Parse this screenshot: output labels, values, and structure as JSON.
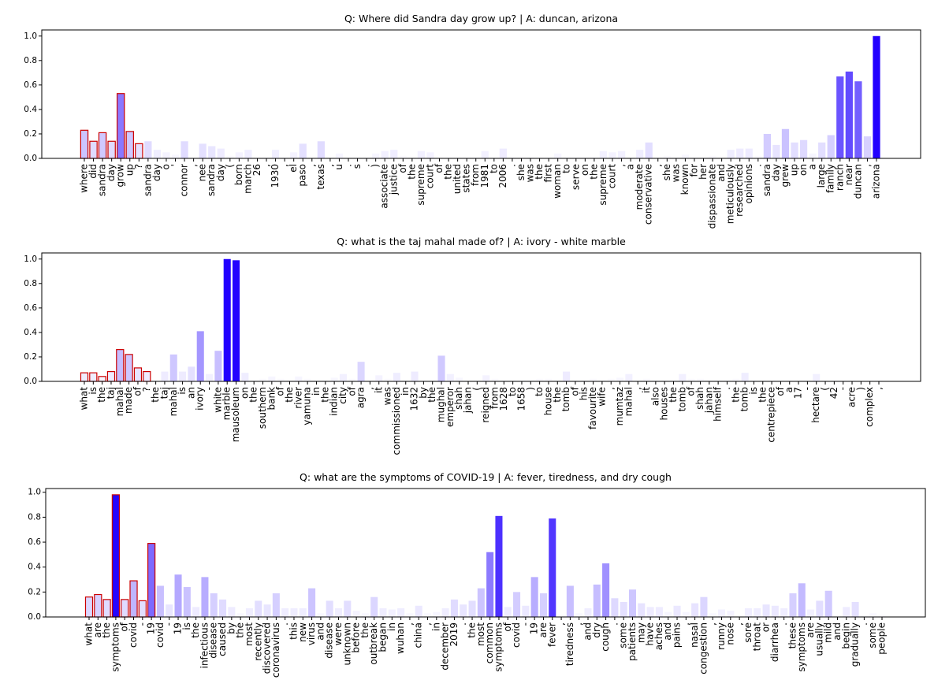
{
  "chart_data": [
    {
      "type": "bar",
      "title": "Q: Where did Sandra day grow up? | A: duncan, arizona",
      "color": "#2200ff",
      "edge_color": "#cc0000",
      "edged_count": 7,
      "categories": [
        "where",
        "did",
        "sandra",
        "day",
        "grow",
        "up",
        "?",
        "sandra",
        "day",
        "o",
        "'",
        "connor",
        ",",
        "nee",
        "sandra",
        "day",
        "(",
        "born",
        "march",
        "26",
        ",",
        "1930",
        ",",
        "el",
        "paso",
        ",",
        "texas",
        ",",
        "u",
        ".",
        "s",
        ".",
        ")",
        "associate",
        "justice",
        "of",
        "the",
        "supreme",
        "court",
        "of",
        "the",
        "united",
        "states",
        "from",
        "1981",
        "to",
        "2006",
        ".",
        "she",
        "was",
        "the",
        "first",
        "woman",
        "to",
        "serve",
        "on",
        "the",
        "supreme",
        "court",
        ",",
        "a",
        "moderate",
        "conservative",
        ",",
        "she",
        "was",
        "known",
        "for",
        "her",
        "dispassionate",
        "and",
        "meticulously",
        "researched",
        "opinions",
        ".",
        "sandra",
        "day",
        "grew",
        "up",
        "on",
        "a",
        "large",
        "family",
        "ranch",
        "near",
        "duncan",
        ",",
        "arizona"
      ],
      "values": [
        0.23,
        0.14,
        0.21,
        0.14,
        0.53,
        0.22,
        0.12,
        0.14,
        0.07,
        0.05,
        0.03,
        0.14,
        0.01,
        0.12,
        0.1,
        0.08,
        0.02,
        0.05,
        0.07,
        0.01,
        0.01,
        0.07,
        0.01,
        0.05,
        0.12,
        0.01,
        0.14,
        0.01,
        0.04,
        0.01,
        0.01,
        0.01,
        0.04,
        0.06,
        0.07,
        0.02,
        0.01,
        0.06,
        0.05,
        0.01,
        0.01,
        0.01,
        0.01,
        0.01,
        0.06,
        0.01,
        0.08,
        0.01,
        0.01,
        0.01,
        0.01,
        0.01,
        0.04,
        0.01,
        0.01,
        0.01,
        0.01,
        0.06,
        0.05,
        0.06,
        0.01,
        0.07,
        0.13,
        0.01,
        0.02,
        0.01,
        0.03,
        0.01,
        0.01,
        0.02,
        0.01,
        0.07,
        0.08,
        0.08,
        0.02,
        0.2,
        0.11,
        0.24,
        0.13,
        0.15,
        0.04,
        0.13,
        0.19,
        0.67,
        0.71,
        0.63,
        0.18,
        1.0
      ],
      "ylim": [
        0,
        1.05
      ],
      "yticks": [
        {
          "value": 0,
          "label": "0.0"
        },
        {
          "value": 0.2,
          "label": "0.2"
        },
        {
          "value": 0.4,
          "label": "0.4"
        },
        {
          "value": 0.6,
          "label": "0.6"
        },
        {
          "value": 0.8,
          "label": "0.8"
        },
        {
          "value": 1.0,
          "label": "1.0"
        }
      ]
    },
    {
      "type": "bar",
      "title": "Q: what is the taj mahal made of? | A: ivory - white marble",
      "color": "#2200ff",
      "edge_color": "#cc0000",
      "edged_count": 8,
      "categories": [
        "what",
        "is",
        "the",
        "taj",
        "mahal",
        "made",
        "of",
        "?",
        "the",
        "taj",
        "mahal",
        "is",
        "an",
        "ivory",
        "-",
        "white",
        "marble",
        "mausoleum",
        "on",
        "the",
        "southern",
        "bank",
        "of",
        "the",
        "river",
        "yamuna",
        "in",
        "the",
        "indian",
        "city",
        "of",
        "agra",
        ",",
        "it",
        "was",
        "commissioned",
        "in",
        "1632",
        "by",
        "the",
        "mughal",
        "emperor",
        "shah",
        "jahan",
        "(",
        "reigned",
        "from",
        "1628",
        "to",
        "1658",
        ")",
        "to",
        "house",
        "the",
        "tomb",
        "of",
        "his",
        "favourite",
        "wife",
        ",",
        "mumtaz",
        "mahal",
        ",",
        "it",
        "also",
        "houses",
        "the",
        "tomb",
        "of",
        "shah",
        "jahan",
        "himself",
        ".",
        "the",
        "tomb",
        "is",
        "the",
        "centrepiece",
        "of",
        "a",
        "17",
        "-",
        "hectare",
        "(",
        "42",
        "-",
        "acre",
        ")",
        "complex",
        ","
      ],
      "values": [
        0.07,
        0.07,
        0.04,
        0.08,
        0.26,
        0.22,
        0.11,
        0.08,
        0.01,
        0.08,
        0.22,
        0.08,
        0.12,
        0.41,
        0.06,
        0.25,
        1.0,
        0.99,
        0.07,
        0.01,
        0.02,
        0.04,
        0.02,
        0.01,
        0.04,
        0.02,
        0.01,
        0.01,
        0.03,
        0.06,
        0.02,
        0.16,
        0.01,
        0.05,
        0.02,
        0.07,
        0.01,
        0.08,
        0.01,
        0.01,
        0.21,
        0.06,
        0.03,
        0.01,
        0.01,
        0.05,
        0.02,
        0.01,
        0.01,
        0.01,
        0.01,
        0.02,
        0.02,
        0.01,
        0.08,
        0.01,
        0.01,
        0.02,
        0.01,
        0.02,
        0.03,
        0.06,
        0.01,
        0.02,
        0.01,
        0.01,
        0.01,
        0.06,
        0.02,
        0.02,
        0.01,
        0.01,
        0.01,
        0.02,
        0.07,
        0.01,
        0.01,
        0.01,
        0.01,
        0.01,
        0.01,
        0.01,
        0.06,
        0.01,
        0.01,
        0.01,
        0.01,
        0.01,
        0.01,
        0.01
      ],
      "ylim": [
        0,
        1.05
      ],
      "yticks": [
        {
          "value": 0,
          "label": "0.0"
        },
        {
          "value": 0.2,
          "label": "0.2"
        },
        {
          "value": 0.4,
          "label": "0.4"
        },
        {
          "value": 0.6,
          "label": "0.6"
        },
        {
          "value": 0.8,
          "label": "0.8"
        },
        {
          "value": 1.0,
          "label": "1.0"
        }
      ]
    },
    {
      "type": "bar",
      "title": "Q: what are the symptoms of COVID-19 | A: fever, tiredness, and dry cough",
      "color": "#2200ff",
      "edge_color": "#cc0000",
      "edged_count": 8,
      "categories": [
        "what",
        "are",
        "the",
        "symptoms",
        "of",
        "covid",
        "-",
        "19",
        "covid",
        "-",
        "19",
        "is",
        "the",
        "infectious",
        "disease",
        "caused",
        "by",
        "the",
        "most",
        "recently",
        "discovered",
        "coronavirus",
        ".",
        "this",
        "new",
        "virus",
        "and",
        "disease",
        "were",
        "unknown",
        "before",
        "the",
        "outbreak",
        "began",
        "in",
        "wuhan",
        ",",
        "china",
        ",",
        "in",
        "december",
        "2019",
        ".",
        "the",
        "most",
        "common",
        "symptoms",
        "of",
        "covid",
        "-",
        "19",
        "are",
        "fever",
        ",",
        "tiredness",
        ",",
        "and",
        "dry",
        "cough",
        ".",
        "some",
        "patients",
        "may",
        "have",
        "aches",
        "and",
        "pains",
        ",",
        "nasal",
        "congestion",
        ",",
        "runny",
        "nose",
        ",",
        "sore",
        "throat",
        "or",
        "diarrhea",
        ".",
        "these",
        "symptoms",
        "are",
        "usually",
        "mild",
        "and",
        "begin",
        "gradually",
        ".",
        "some",
        "people"
      ],
      "values": [
        0.16,
        0.18,
        0.14,
        0.98,
        0.14,
        0.29,
        0.13,
        0.59,
        0.25,
        0.1,
        0.34,
        0.24,
        0.08,
        0.32,
        0.19,
        0.14,
        0.08,
        0.03,
        0.07,
        0.13,
        0.1,
        0.19,
        0.07,
        0.07,
        0.07,
        0.23,
        0.03,
        0.13,
        0.07,
        0.13,
        0.05,
        0.03,
        0.16,
        0.07,
        0.06,
        0.07,
        0.03,
        0.09,
        0.03,
        0.04,
        0.07,
        0.14,
        0.1,
        0.13,
        0.23,
        0.52,
        0.81,
        0.08,
        0.2,
        0.09,
        0.32,
        0.19,
        0.79,
        0.02,
        0.25,
        0.03,
        0.07,
        0.26,
        0.43,
        0.15,
        0.12,
        0.22,
        0.11,
        0.08,
        0.08,
        0.04,
        0.09,
        0.04,
        0.11,
        0.16,
        0.03,
        0.06,
        0.05,
        0.01,
        0.07,
        0.07,
        0.1,
        0.09,
        0.07,
        0.19,
        0.27,
        0.06,
        0.13,
        0.21,
        0.01,
        0.08,
        0.12,
        0.01,
        0.03,
        0.02
      ],
      "ylim": [
        0,
        1.03
      ],
      "yticks": [
        {
          "value": 0,
          "label": "0.0"
        },
        {
          "value": 0.2,
          "label": "0.2"
        },
        {
          "value": 0.4,
          "label": "0.4"
        },
        {
          "value": 0.6,
          "label": "0.6"
        },
        {
          "value": 0.8,
          "label": "0.8"
        },
        {
          "value": 1.0,
          "label": "1.0"
        }
      ]
    }
  ]
}
